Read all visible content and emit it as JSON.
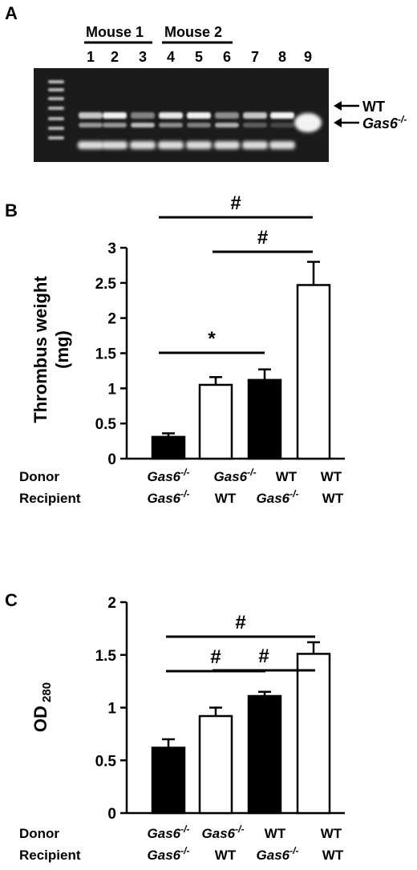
{
  "panel_a": {
    "letter": "A",
    "group_labels": [
      "Mouse 1",
      "Mouse 2"
    ],
    "lane_numbers": [
      "1",
      "2",
      "3",
      "4",
      "5",
      "6",
      "7",
      "8",
      "9"
    ],
    "band_label_wt": "WT",
    "band_label_gas6_base": "Gas6",
    "band_label_gas6_sup": "-/-"
  },
  "xcat": {
    "row1_label": "Donor",
    "row2_label": "Recipient",
    "gas6_base": "Gas6",
    "gas6_sup": "-/-",
    "wt": "WT"
  },
  "chart_data": [
    {
      "type": "bar",
      "panel": "B",
      "ylabel_line1": "Thrombus weight",
      "ylabel_line2": "(mg)",
      "ylim": [
        0,
        3
      ],
      "yticks": [
        "0",
        "0.5",
        "1",
        "1.5",
        "2",
        "2.5",
        "3"
      ],
      "ytick_values": [
        0,
        0.5,
        1,
        1.5,
        2,
        2.5,
        3
      ],
      "categories": [
        {
          "donor": "Gas6-/-",
          "recipient": "Gas6-/-"
        },
        {
          "donor": "Gas6-/-",
          "recipient": "WT"
        },
        {
          "donor": "WT",
          "recipient": "Gas6-/-"
        },
        {
          "donor": "WT",
          "recipient": "WT"
        }
      ],
      "values": [
        0.31,
        1.05,
        1.12,
        2.47
      ],
      "errors": [
        0.05,
        0.11,
        0.15,
        0.33
      ],
      "bar_fill": [
        "#000000",
        "#ffffff",
        "#000000",
        "#ffffff"
      ],
      "significance": [
        {
          "from": 0,
          "to": 3,
          "label": "#"
        },
        {
          "from": 1,
          "to": 3,
          "label": "#"
        },
        {
          "from": 0,
          "to": 2,
          "label": "*"
        }
      ]
    },
    {
      "type": "bar",
      "panel": "C",
      "ylabel_base": "OD",
      "ylabel_sub": "280",
      "ylim": [
        0,
        2
      ],
      "yticks": [
        "0",
        "0.5",
        "1",
        "1.5",
        "2"
      ],
      "ytick_values": [
        0,
        0.5,
        1,
        1.5,
        2
      ],
      "categories": [
        {
          "donor": "Gas6-/-",
          "recipient": "Gas6-/-"
        },
        {
          "donor": "Gas6-/-",
          "recipient": "WT"
        },
        {
          "donor": "WT",
          "recipient": "Gas6-/-"
        },
        {
          "donor": "WT",
          "recipient": "WT"
        }
      ],
      "values": [
        0.62,
        0.92,
        1.11,
        1.51
      ],
      "errors": [
        0.08,
        0.08,
        0.04,
        0.11
      ],
      "bar_fill": [
        "#000000",
        "#ffffff",
        "#000000",
        "#ffffff"
      ],
      "significance": [
        {
          "from": 0,
          "to": 3,
          "label": "#"
        },
        {
          "from": 1,
          "to": 3,
          "label": "#"
        },
        {
          "from": 0,
          "to": 2,
          "label": "#"
        }
      ]
    }
  ]
}
